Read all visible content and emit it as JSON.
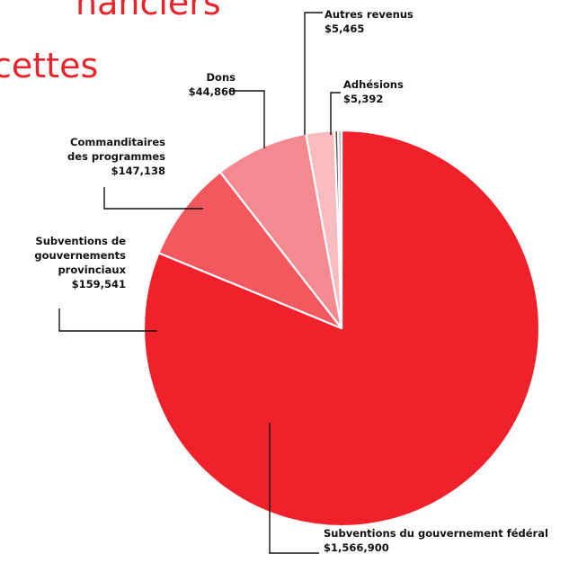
{
  "header": {
    "line1": "nanciers",
    "line2": "cettes"
  },
  "chart_data": {
    "type": "pie",
    "slices": [
      {
        "label": [
          "Subventions du gouvernement fédéral"
        ],
        "value_text": "$1,566,900",
        "value": 1566900,
        "color": "#f0212b"
      },
      {
        "label": [
          "Subventions de",
          "gouvernements",
          "provinciaux"
        ],
        "value_text": "$159,541",
        "value": 159541,
        "color": "#f2585e"
      },
      {
        "label": [
          "Commanditaires",
          "des programmes"
        ],
        "value_text": "$147,138",
        "value": 147138,
        "color": "#f48a8f"
      },
      {
        "label": [
          "Dons"
        ],
        "value_text": "$44,860",
        "value": 44860,
        "color": "#f8bcbe"
      },
      {
        "label": [
          "Autres revenus"
        ],
        "value_text": "$5,465",
        "value": 5465,
        "color": "#4a4a4a"
      },
      {
        "label": [
          "Adhésions"
        ],
        "value_text": "$5,392",
        "value": 5392,
        "color": "#b8b8b8"
      }
    ]
  }
}
